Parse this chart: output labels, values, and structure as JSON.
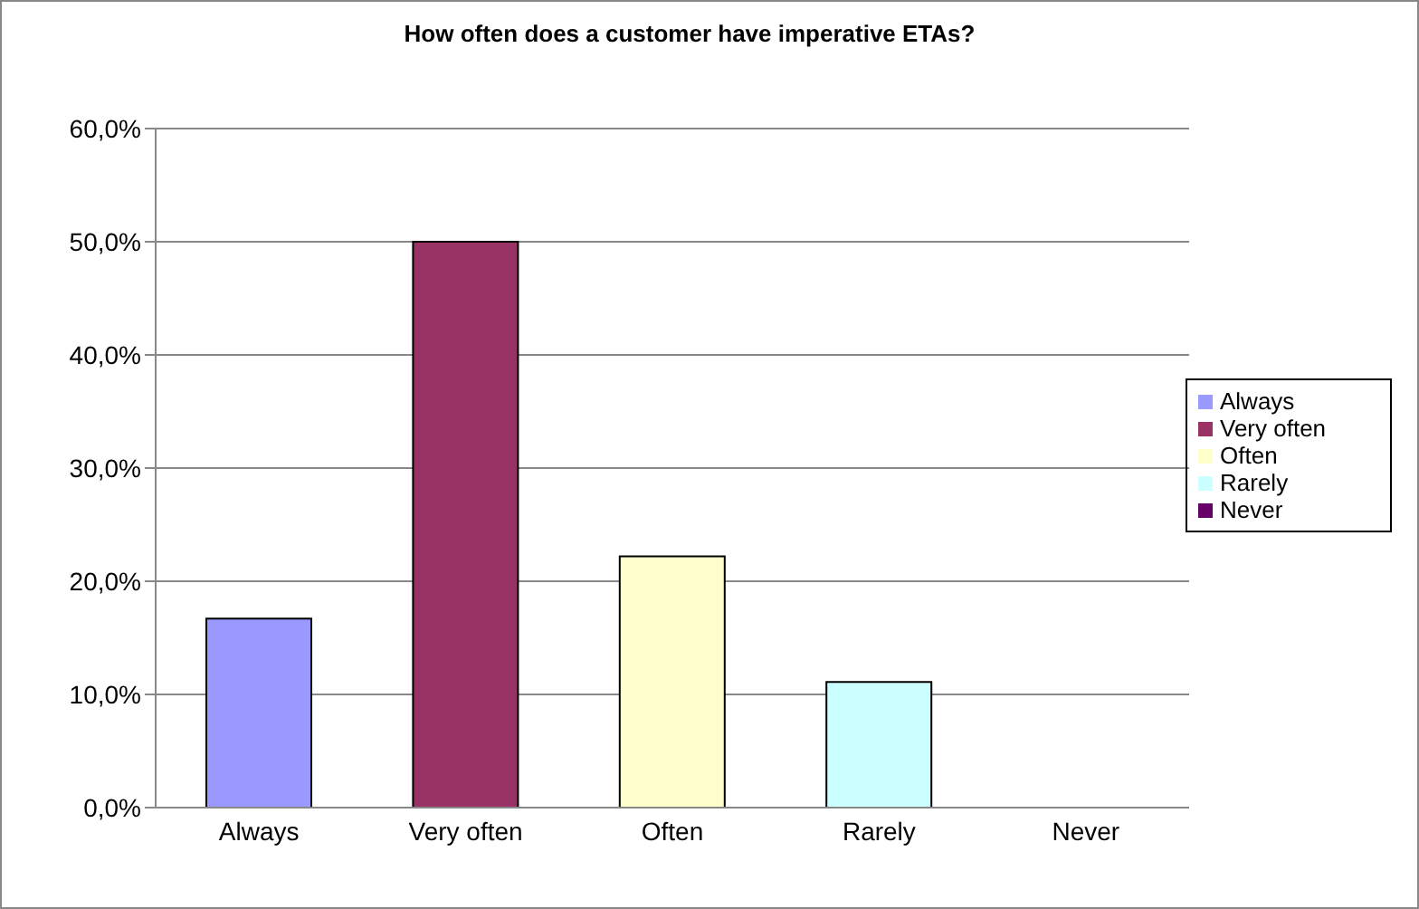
{
  "chart_data": {
    "type": "bar",
    "title": "How often does a customer have imperative ETAs?",
    "categories": [
      "Always",
      "Very often",
      "Often",
      "Rarely",
      "Never"
    ],
    "series": [
      {
        "name": "Always",
        "color": "#9999ff",
        "values": [
          16.7,
          null,
          null,
          null,
          null
        ]
      },
      {
        "name": "Very often",
        "color": "#993366",
        "values": [
          null,
          50,
          null,
          null,
          null
        ]
      },
      {
        "name": "Often",
        "color": "#ffffcc",
        "values": [
          null,
          null,
          22.2,
          null,
          null
        ]
      },
      {
        "name": "Rarely",
        "color": "#ccffff",
        "values": [
          null,
          null,
          null,
          11.1,
          null
        ]
      },
      {
        "name": "Never",
        "color": "#660066",
        "values": [
          null,
          null,
          null,
          null,
          0
        ]
      }
    ],
    "stacked": true,
    "ylim": [
      0,
      60
    ],
    "yticks": [
      {
        "value": 0,
        "label": "0,0%"
      },
      {
        "value": 10,
        "label": "10,0%"
      },
      {
        "value": 20,
        "label": "20,0%"
      },
      {
        "value": 30,
        "label": "30,0%"
      },
      {
        "value": 40,
        "label": "40,0%"
      },
      {
        "value": 50,
        "label": "50,0%"
      },
      {
        "value": 60,
        "label": "60,0%"
      }
    ],
    "grid": "y",
    "legend": "right"
  }
}
